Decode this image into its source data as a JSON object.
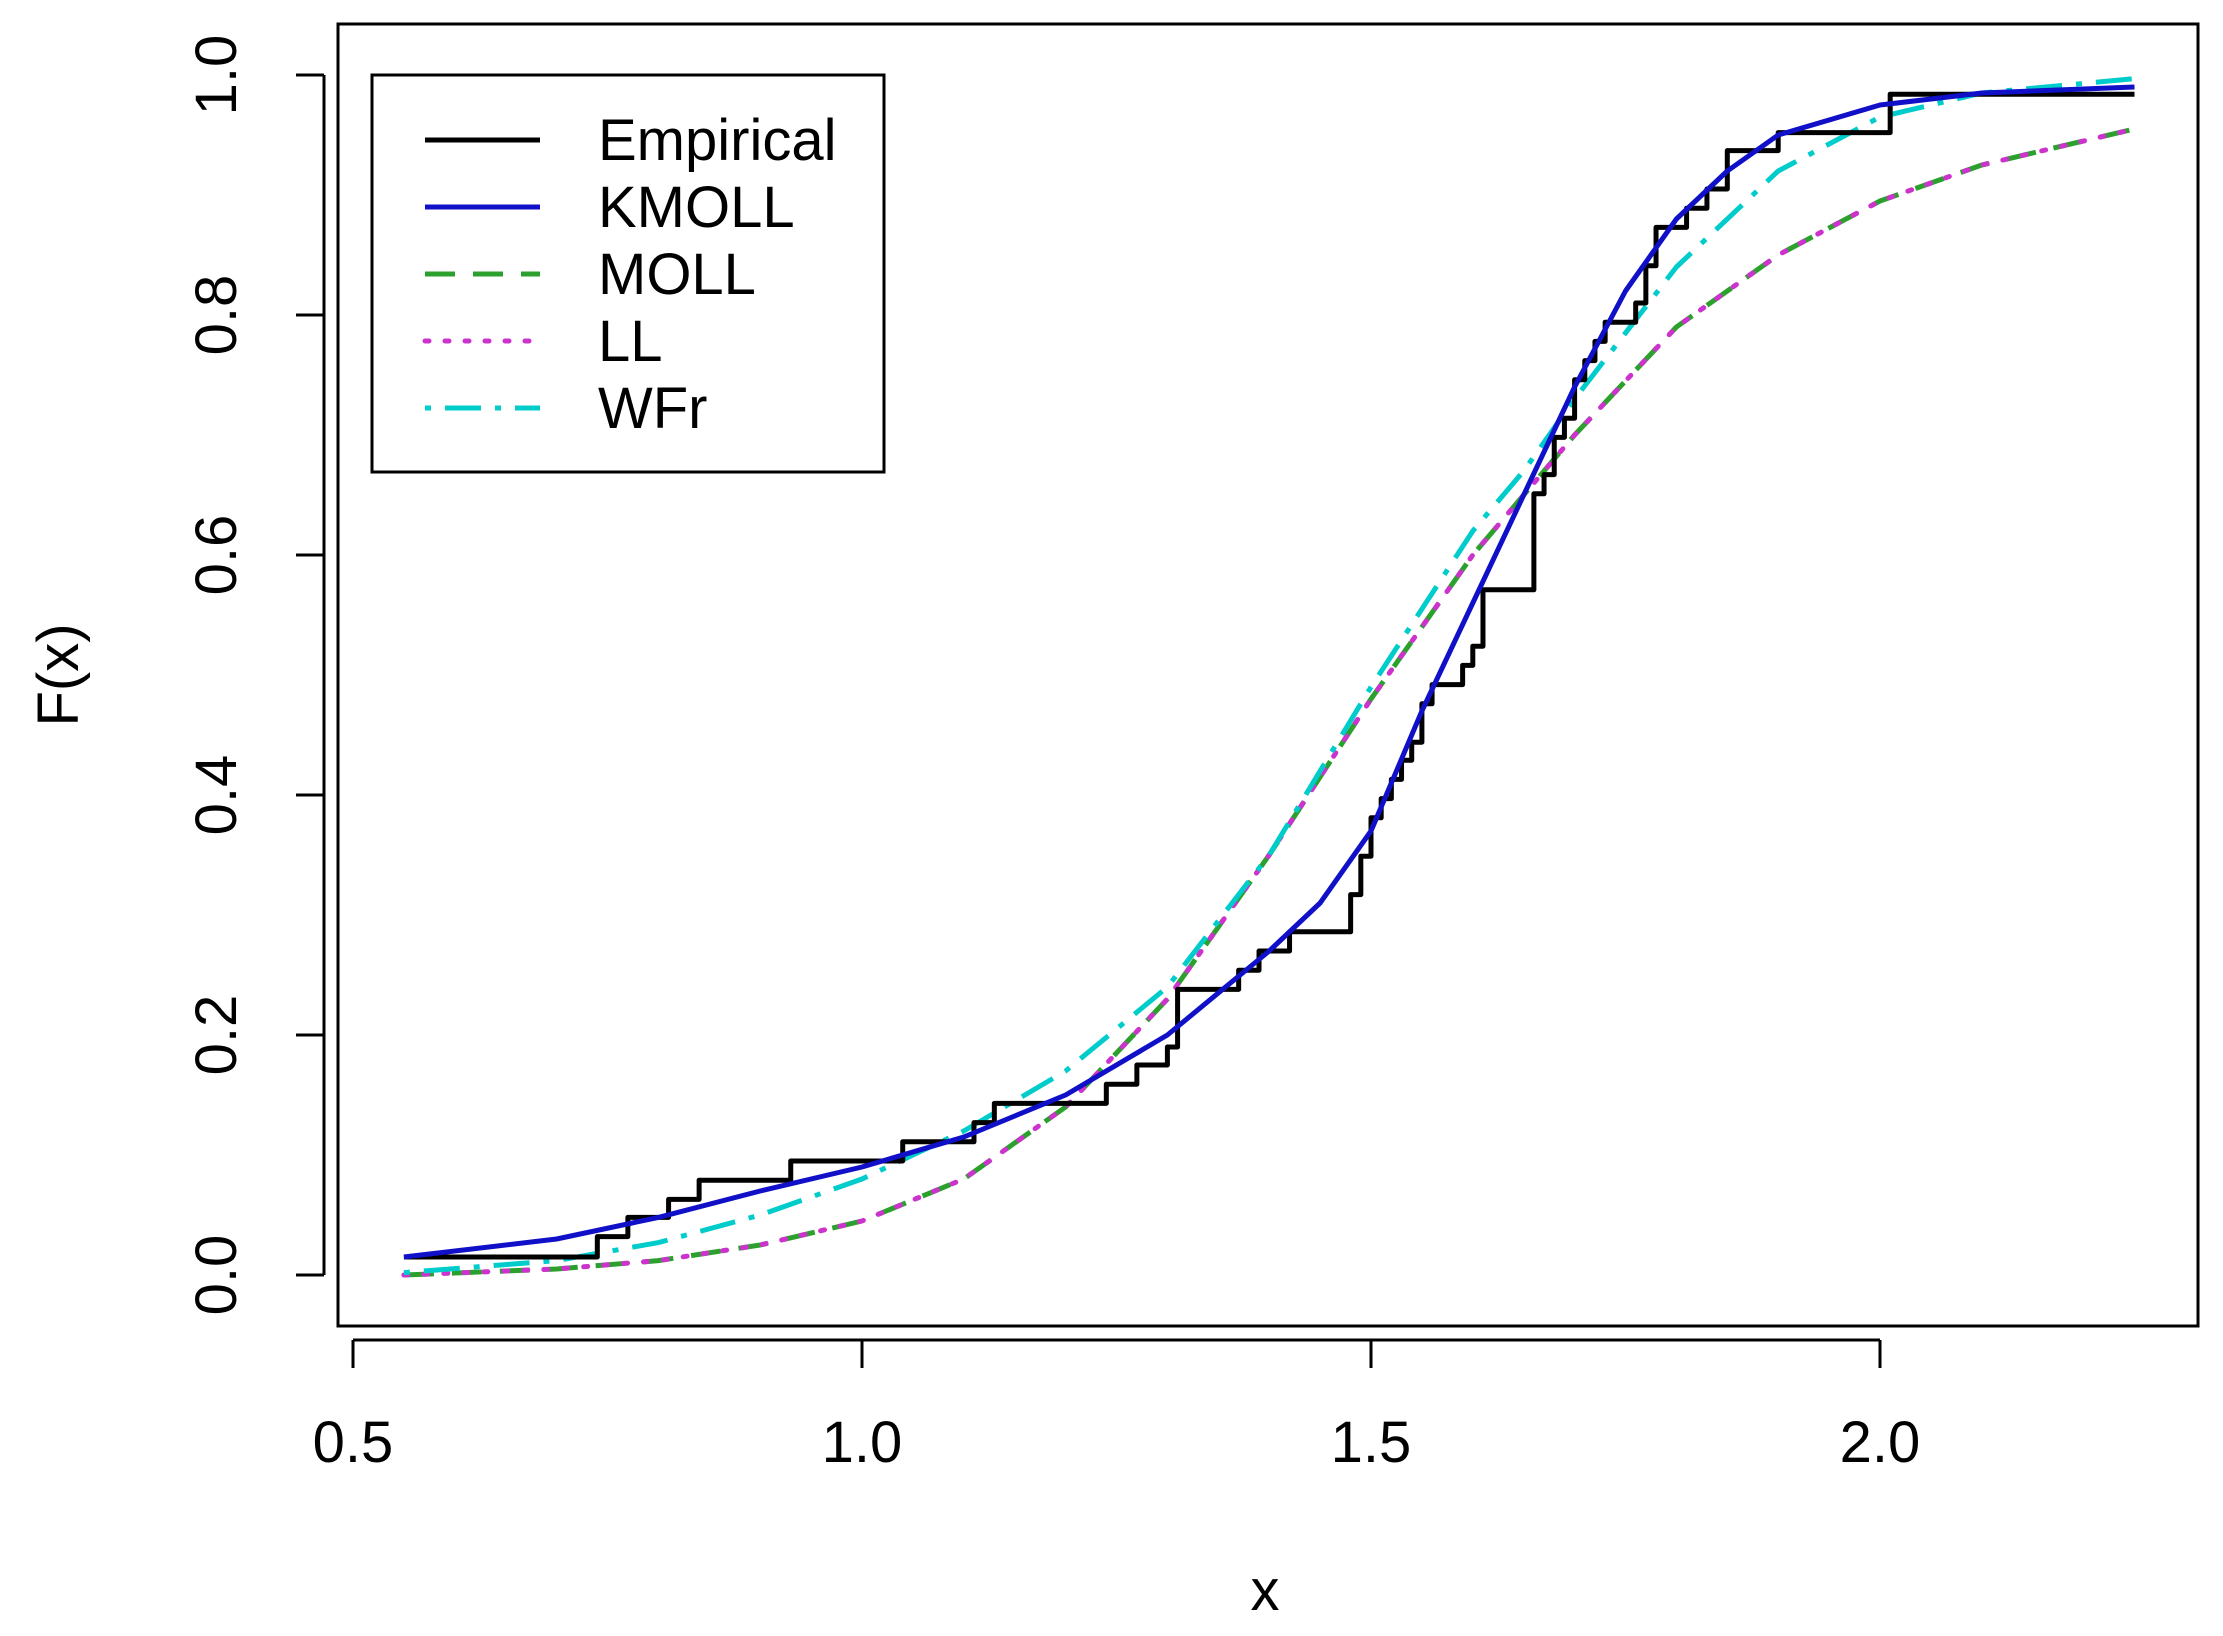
{
  "chart_data": {
    "type": "line",
    "xlabel": "x",
    "ylabel": "F(x)",
    "xlim": [
      0.5,
      2.25
    ],
    "ylim": [
      0.0,
      1.0
    ],
    "xticks": [
      0.5,
      1.0,
      1.5,
      2.0
    ],
    "xtick_labels": [
      "0.5",
      "1.0",
      "1.5",
      "2.0"
    ],
    "yticks": [
      0.0,
      0.2,
      0.4,
      0.6,
      0.8,
      1.0
    ],
    "ytick_labels": [
      "0.0",
      "0.2",
      "0.4",
      "0.6",
      "0.8",
      "1.0"
    ],
    "grid": false,
    "legend_position": "top-left",
    "series": [
      {
        "name": "Empirical",
        "color": "#000000",
        "style": "step",
        "x": [
          0.55,
          0.74,
          0.77,
          0.81,
          0.84,
          0.93,
          1.04,
          1.11,
          1.13,
          1.24,
          1.27,
          1.3,
          1.31,
          1.37,
          1.39,
          1.42,
          1.48,
          1.49,
          1.5,
          1.51,
          1.52,
          1.53,
          1.54,
          1.55,
          1.56,
          1.59,
          1.6,
          1.61,
          1.66,
          1.67,
          1.68,
          1.69,
          1.7,
          1.71,
          1.72,
          1.73,
          1.76,
          1.77,
          1.78,
          1.81,
          1.83,
          1.85,
          1.9,
          2.01,
          2.25
        ],
        "y": [
          0.015,
          0.032,
          0.048,
          0.063,
          0.079,
          0.095,
          0.111,
          0.127,
          0.143,
          0.159,
          0.175,
          0.19,
          0.238,
          0.254,
          0.27,
          0.286,
          0.317,
          0.349,
          0.381,
          0.397,
          0.413,
          0.429,
          0.444,
          0.476,
          0.492,
          0.508,
          0.524,
          0.571,
          0.651,
          0.667,
          0.698,
          0.714,
          0.746,
          0.762,
          0.778,
          0.794,
          0.81,
          0.841,
          0.873,
          0.889,
          0.905,
          0.937,
          0.952,
          0.984,
          0.984
        ]
      },
      {
        "name": "KMOLL",
        "color": "#1010c8",
        "style": "solid",
        "x": [
          0.55,
          0.7,
          0.8,
          0.9,
          1.0,
          1.1,
          1.2,
          1.3,
          1.4,
          1.45,
          1.5,
          1.55,
          1.6,
          1.65,
          1.7,
          1.75,
          1.8,
          1.85,
          1.9,
          2.0,
          2.1,
          2.25
        ],
        "y": [
          0.015,
          0.03,
          0.048,
          0.07,
          0.09,
          0.115,
          0.15,
          0.2,
          0.27,
          0.31,
          0.37,
          0.47,
          0.56,
          0.65,
          0.74,
          0.82,
          0.88,
          0.92,
          0.95,
          0.975,
          0.985,
          0.99
        ]
      },
      {
        "name": "MOLL",
        "color": "#2ca02c",
        "style": "dashed",
        "x": [
          0.55,
          0.7,
          0.8,
          0.9,
          1.0,
          1.1,
          1.2,
          1.3,
          1.4,
          1.5,
          1.6,
          1.65,
          1.7,
          1.8,
          1.9,
          2.0,
          2.1,
          2.25
        ],
        "y": [
          0.0,
          0.005,
          0.012,
          0.025,
          0.045,
          0.08,
          0.14,
          0.23,
          0.35,
          0.48,
          0.6,
          0.65,
          0.7,
          0.79,
          0.85,
          0.895,
          0.925,
          0.955
        ]
      },
      {
        "name": "LL",
        "color": "#cc33cc",
        "style": "dotted",
        "x": [
          0.55,
          0.7,
          0.8,
          0.9,
          1.0,
          1.1,
          1.2,
          1.3,
          1.4,
          1.5,
          1.6,
          1.65,
          1.7,
          1.8,
          1.9,
          2.0,
          2.1,
          2.25
        ],
        "y": [
          0.0,
          0.005,
          0.012,
          0.025,
          0.045,
          0.08,
          0.14,
          0.23,
          0.35,
          0.48,
          0.6,
          0.65,
          0.7,
          0.79,
          0.85,
          0.895,
          0.925,
          0.955
        ]
      },
      {
        "name": "WFr",
        "color": "#00cccc",
        "style": "dotdash",
        "x": [
          0.55,
          0.7,
          0.8,
          0.9,
          1.0,
          1.1,
          1.2,
          1.3,
          1.4,
          1.5,
          1.6,
          1.65,
          1.7,
          1.8,
          1.9,
          2.0,
          2.1,
          2.25
        ],
        "y": [
          0.002,
          0.012,
          0.027,
          0.05,
          0.08,
          0.12,
          0.17,
          0.24,
          0.35,
          0.49,
          0.62,
          0.67,
          0.73,
          0.84,
          0.92,
          0.965,
          0.985,
          0.997
        ]
      }
    ]
  }
}
